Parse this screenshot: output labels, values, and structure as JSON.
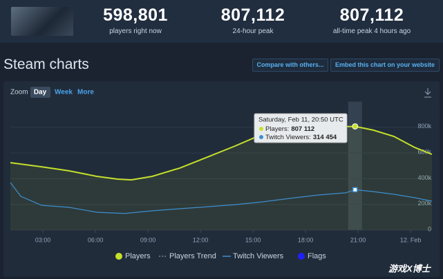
{
  "header": {
    "stats": [
      {
        "value": "598,801",
        "label": "players right now"
      },
      {
        "value": "807,112",
        "label": "24-hour peak"
      },
      {
        "value": "807,112",
        "label": "all-time peak 4 hours ago"
      }
    ]
  },
  "section_title": "Steam charts",
  "buttons": [
    "Compare with others...",
    "Embed this chart on your website"
  ],
  "zoom": {
    "label": "Zoom",
    "options": [
      "Day",
      "Week",
      "More"
    ]
  },
  "tooltip": {
    "title": "Saturday, Feb 11, 20:50 UTC",
    "rows": [
      {
        "name": "Players:",
        "value": "807 112"
      },
      {
        "name": "Twitch Viewers:",
        "value": "314 454"
      }
    ]
  },
  "watermark": "游戏X博士",
  "chart_data": {
    "type": "line",
    "xlim": [
      1.14,
      25.22
    ],
    "xticks": [
      {
        "value": 3,
        "label": "03:00"
      },
      {
        "value": 6,
        "label": "06:00"
      },
      {
        "value": 9,
        "label": "09:00"
      },
      {
        "value": 12,
        "label": "12:00"
      },
      {
        "value": 15,
        "label": "15:00"
      },
      {
        "value": 18,
        "label": "18:00"
      },
      {
        "value": 21,
        "label": "21:00"
      },
      {
        "value": 24,
        "label": "12. Feb"
      }
    ],
    "ylim": [
      0,
      1000000
    ],
    "yticks": [
      0,
      {
        "value": 200000,
        "label": "200k"
      },
      {
        "value": 400000,
        "label": "400k"
      },
      {
        "value": 600000,
        "label": "600k"
      },
      {
        "value": 800000,
        "label": "800k"
      }
    ],
    "grid": true,
    "highlight_x": 20.83,
    "series": [
      {
        "name": "Players",
        "color": "#c6e02a",
        "x": [
          1.14,
          2.92,
          4.5,
          6.08,
          7.26,
          8.05,
          9.24,
          10.82,
          12.39,
          13.97,
          15.16,
          16.34,
          17.92,
          19.5,
          20.83,
          21.87,
          23.05,
          24.24,
          25.22
        ],
        "values": [
          525000,
          493000,
          461000,
          418000,
          397000,
          391000,
          418000,
          483000,
          568000,
          654000,
          724000,
          772000,
          793000,
          804000,
          807112,
          778000,
          729000,
          643000,
          590000
        ]
      },
      {
        "name": "Twitch Viewers",
        "color": "#3d8fd1",
        "x": [
          1.14,
          1.74,
          2.92,
          4.5,
          6.08,
          7.66,
          9.24,
          10.82,
          12.39,
          13.97,
          15.55,
          17.13,
          18.71,
          20.29,
          20.83,
          21.87,
          23.05,
          24.24,
          25.22
        ],
        "values": [
          370000,
          263000,
          193000,
          177000,
          139000,
          129000,
          150000,
          166000,
          182000,
          198000,
          220000,
          247000,
          273000,
          290000,
          314454,
          300000,
          279000,
          252000,
          225000
        ]
      }
    ],
    "extra_legend": [
      {
        "name": "Players Trend",
        "color": "#6f8aa3"
      },
      {
        "name": "Flags",
        "color": "#2020ff"
      }
    ]
  }
}
